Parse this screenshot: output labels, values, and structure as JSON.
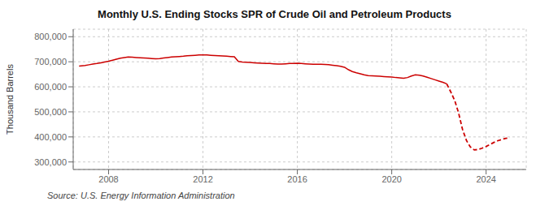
{
  "chart_data": {
    "type": "line",
    "title": "Monthly U.S. Ending Stocks SPR of Crude Oil and Petroleum Products",
    "ylabel": "Thousand Barrels",
    "annotations": [
      "Source: U.S. Energy Information Administration"
    ],
    "grid": true,
    "xlim": [
      2006.5,
      2025.7
    ],
    "xticks": [
      2008,
      2012,
      2016,
      2020,
      2024
    ],
    "ylim": [
      270000,
      830000
    ],
    "yticks": [
      {
        "value": 300000,
        "label": "300,000"
      },
      {
        "value": 400000,
        "label": "400,000"
      },
      {
        "value": 500000,
        "label": "500,000"
      },
      {
        "value": 600000,
        "label": "600,000"
      },
      {
        "value": 700000,
        "label": "700,000"
      },
      {
        "value": 800000,
        "label": "800,000"
      }
    ],
    "series": [
      {
        "color": "#cc0000",
        "line_style": "solid",
        "x": [
          2006.75,
          2007.0,
          2007.17,
          2007.33,
          2007.5,
          2007.67,
          2007.83,
          2008.0,
          2008.17,
          2008.33,
          2008.5,
          2008.67,
          2008.83,
          2009.0,
          2009.17,
          2009.33,
          2009.5,
          2009.67,
          2009.83,
          2010.0,
          2010.17,
          2010.33,
          2010.5,
          2010.67,
          2010.83,
          2011.0,
          2011.17,
          2011.33,
          2011.5,
          2011.67,
          2011.83,
          2012.0,
          2012.17,
          2012.33,
          2012.5,
          2012.67,
          2012.83,
          2013.0,
          2013.17,
          2013.33,
          2013.5,
          2013.67,
          2013.83,
          2014.0,
          2014.17,
          2014.33,
          2014.5,
          2014.67,
          2014.83,
          2015.0,
          2015.17,
          2015.33,
          2015.5,
          2015.67,
          2015.83,
          2016.0,
          2016.17,
          2016.33,
          2016.5,
          2016.67,
          2016.83,
          2017.0,
          2017.17,
          2017.33,
          2017.5,
          2017.67,
          2017.83,
          2018.0,
          2018.17,
          2018.33,
          2018.5,
          2018.67,
          2018.83,
          2019.0,
          2019.17,
          2019.33,
          2019.5,
          2019.67,
          2019.83,
          2020.0,
          2020.17,
          2020.33,
          2020.5,
          2020.67,
          2020.83,
          2021.0,
          2021.17,
          2021.33,
          2021.5,
          2021.67,
          2021.83,
          2022.0,
          2022.17,
          2022.33
        ],
        "values": [
          683000,
          685000,
          688000,
          691000,
          693000,
          696000,
          699000,
          702000,
          706000,
          710000,
          714000,
          717000,
          719000,
          718000,
          717000,
          716000,
          715000,
          714000,
          713000,
          712000,
          713000,
          715000,
          717000,
          719000,
          720000,
          721000,
          722000,
          724000,
          725000,
          726000,
          727000,
          727000,
          727000,
          726000,
          725000,
          724000,
          723000,
          722000,
          721000,
          720000,
          701000,
          699000,
          698000,
          697000,
          696000,
          695000,
          694000,
          693000,
          693000,
          692000,
          691000,
          691000,
          692000,
          693000,
          693000,
          694000,
          693000,
          692000,
          691000,
          690000,
          690000,
          690000,
          689000,
          688000,
          686000,
          684000,
          682000,
          678000,
          668000,
          661000,
          656000,
          652000,
          648000,
          645000,
          644000,
          643000,
          642000,
          641000,
          640000,
          639000,
          637000,
          636000,
          634000,
          637000,
          643000,
          648000,
          646000,
          643000,
          638000,
          633000,
          628000,
          623000,
          618000,
          612000
        ]
      },
      {
        "color": "#cc0000",
        "line_style": "dashed",
        "x": [
          2022.33,
          2022.5,
          2022.67,
          2022.83,
          2023.0,
          2023.17,
          2023.33,
          2023.5,
          2023.67,
          2023.83,
          2024.0,
          2024.17,
          2024.33,
          2024.5,
          2024.67,
          2024.83,
          2025.0
        ],
        "values": [
          612000,
          580000,
          545000,
          497000,
          430000,
          385000,
          360000,
          348000,
          350000,
          355000,
          362000,
          370000,
          378000,
          385000,
          390000,
          394000,
          397000
        ]
      }
    ]
  }
}
